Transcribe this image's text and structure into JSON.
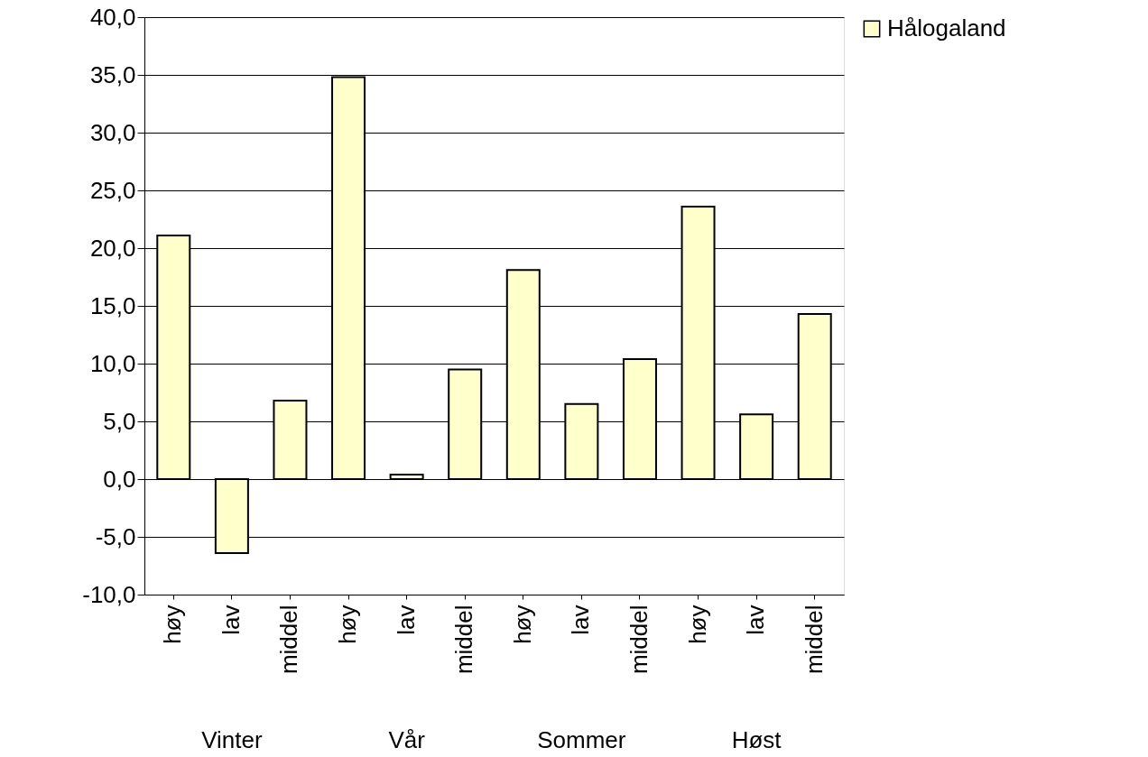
{
  "chart_data": {
    "type": "bar",
    "categories": [
      "høy",
      "lav",
      "middel",
      "høy",
      "lav",
      "middel",
      "høy",
      "lav",
      "middel",
      "høy",
      "lav",
      "middel"
    ],
    "series": [
      {
        "name": "Hålogaland",
        "color": "#ffffcc",
        "values": [
          21.1,
          -6.4,
          6.8,
          34.8,
          0.4,
          9.5,
          18.1,
          6.5,
          10.4,
          23.6,
          5.6,
          14.3
        ]
      }
    ],
    "annotations": [
      "Vinter",
      "Vår",
      "Sommer",
      "Høst"
    ],
    "ylim": [
      -10,
      40
    ],
    "yticks": [
      {
        "value": -10,
        "label": "-10,0"
      },
      {
        "value": -5,
        "label": "-5,0"
      },
      {
        "value": 0,
        "label": "0,0"
      },
      {
        "value": 5,
        "label": "5,0"
      },
      {
        "value": 10,
        "label": "10,0"
      },
      {
        "value": 15,
        "label": "15,0"
      },
      {
        "value": 20,
        "label": "20,0"
      },
      {
        "value": 25,
        "label": "25,0"
      },
      {
        "value": 30,
        "label": "30,0"
      },
      {
        "value": 35,
        "label": "35,0"
      },
      {
        "value": 40,
        "label": "40,0"
      }
    ],
    "grid": "y",
    "legend": "right"
  }
}
